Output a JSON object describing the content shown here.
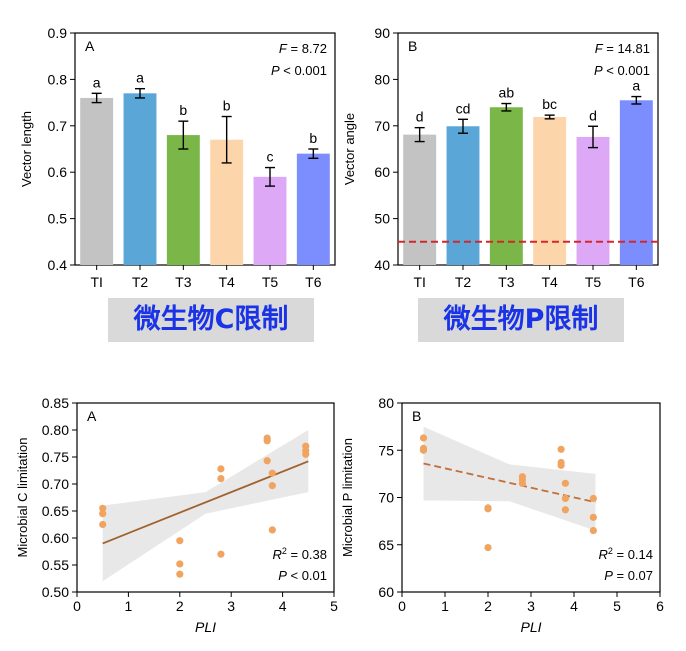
{
  "banners": {
    "left": "微生物C限制",
    "right": "微生物P限制"
  },
  "chart_data": [
    {
      "id": "bar-vector-length",
      "type": "bar",
      "panel_letter": "A",
      "ylabel": "Vector length",
      "xlabel": "",
      "ylim": [
        0.4,
        0.9
      ],
      "yticks": [
        "0.4",
        "0.5",
        "0.6",
        "0.7",
        "0.8",
        "0.9"
      ],
      "categories": [
        "TI",
        "T2",
        "T3",
        "T4",
        "T5",
        "T6"
      ],
      "values": [
        0.76,
        0.77,
        0.68,
        0.67,
        0.59,
        0.64
      ],
      "errors": [
        0.01,
        0.01,
        0.03,
        0.05,
        0.02,
        0.01
      ],
      "letters": [
        "a",
        "a",
        "b",
        "b",
        "c",
        "b"
      ],
      "colors": [
        "#c3c3c3",
        "#5aa7d7",
        "#7ab648",
        "#fdd5aa",
        "#dda8f5",
        "#7c8dfd"
      ],
      "stats": {
        "f_label": "F",
        "f_value": " = 8.72",
        "p_label": "P",
        "p_value": " < 0.001"
      }
    },
    {
      "id": "bar-vector-angle",
      "type": "bar",
      "panel_letter": "B",
      "ylabel": "Vector angle",
      "xlabel": "",
      "ylim": [
        40,
        90
      ],
      "yticks": [
        "40",
        "50",
        "60",
        "70",
        "80",
        "90"
      ],
      "categories": [
        "TI",
        "T2",
        "T3",
        "T4",
        "T5",
        "T6"
      ],
      "values": [
        68.1,
        69.9,
        74.0,
        71.9,
        67.6,
        75.5
      ],
      "errors": [
        1.5,
        1.5,
        0.8,
        0.4,
        2.3,
        0.8
      ],
      "letters": [
        "d",
        "cd",
        "ab",
        "bc",
        "d",
        "a"
      ],
      "colors": [
        "#c3c3c3",
        "#5aa7d7",
        "#7ab648",
        "#fdd5aa",
        "#dda8f5",
        "#7c8dfd"
      ],
      "reference_line": {
        "y": 45,
        "color": "#d62728",
        "style": "dashed"
      },
      "stats": {
        "f_label": "F",
        "f_value": " = 14.81",
        "p_label": "P",
        "p_value": " < 0.001"
      }
    },
    {
      "id": "scatter-c-limitation",
      "type": "scatter",
      "panel_letter": "A",
      "xlabel": "PLI",
      "ylabel": "Microbial C limitation",
      "xlim": [
        0,
        5
      ],
      "ylim": [
        0.5,
        0.85
      ],
      "xticks": [
        "0",
        "1",
        "2",
        "3",
        "4",
        "5"
      ],
      "yticks": [
        "0.50",
        "0.55",
        "0.60",
        "0.65",
        "0.70",
        "0.75",
        "0.80",
        "0.85"
      ],
      "points": [
        [
          0.5,
          0.625
        ],
        [
          0.5,
          0.645
        ],
        [
          0.5,
          0.655
        ],
        [
          2.0,
          0.533
        ],
        [
          2.0,
          0.552
        ],
        [
          2.0,
          0.595
        ],
        [
          2.8,
          0.57
        ],
        [
          2.8,
          0.71
        ],
        [
          2.8,
          0.728
        ],
        [
          3.7,
          0.743
        ],
        [
          3.7,
          0.78
        ],
        [
          3.7,
          0.785
        ],
        [
          3.8,
          0.615
        ],
        [
          3.8,
          0.697
        ],
        [
          3.8,
          0.72
        ],
        [
          4.45,
          0.755
        ],
        [
          4.45,
          0.762
        ],
        [
          4.45,
          0.77
        ]
      ],
      "fit": {
        "x": [
          0.5,
          4.5
        ],
        "y": [
          0.59,
          0.742
        ],
        "style": "solid",
        "color": "#a0622d"
      },
      "band": {
        "x": [
          0.5,
          2.5,
          4.5
        ],
        "upper": [
          0.66,
          0.685,
          0.8
        ],
        "lower": [
          0.52,
          0.645,
          0.685
        ]
      },
      "point_color": "#f0a460",
      "stats": {
        "r2_label": "R",
        "r2_sup": "2",
        "r2_value": " = 0.38",
        "p_label": "P",
        "p_value": " < 0.01"
      }
    },
    {
      "id": "scatter-p-limitation",
      "type": "scatter",
      "panel_letter": "B",
      "xlabel": "PLI",
      "ylabel": "Microbial P limitation",
      "xlim": [
        0,
        6
      ],
      "ylim": [
        60,
        80
      ],
      "xticks": [
        "0",
        "1",
        "2",
        "3",
        "4",
        "5",
        "6"
      ],
      "yticks": [
        "60",
        "65",
        "70",
        "75",
        "80"
      ],
      "points": [
        [
          0.5,
          75.0
        ],
        [
          0.5,
          75.2
        ],
        [
          0.5,
          76.3
        ],
        [
          2.0,
          64.7
        ],
        [
          2.0,
          68.8
        ],
        [
          2.0,
          68.9
        ],
        [
          2.8,
          71.5
        ],
        [
          2.8,
          71.9
        ],
        [
          2.8,
          72.2
        ],
        [
          3.7,
          73.4
        ],
        [
          3.7,
          73.7
        ],
        [
          3.7,
          75.1
        ],
        [
          3.8,
          68.7
        ],
        [
          3.8,
          69.9
        ],
        [
          3.8,
          71.5
        ],
        [
          4.45,
          66.5
        ],
        [
          4.45,
          67.9
        ],
        [
          4.45,
          69.9
        ]
      ],
      "fit": {
        "x": [
          0.5,
          4.5
        ],
        "y": [
          73.6,
          69.5
        ],
        "style": "dashed",
        "color": "#c0703a"
      },
      "band": {
        "x": [
          0.5,
          2.5,
          4.5
        ],
        "upper": [
          77.5,
          73.5,
          72.5
        ],
        "lower": [
          69.7,
          69.6,
          66.5
        ]
      },
      "point_color": "#f0a460",
      "stats": {
        "r2_label": "R",
        "r2_sup": "2",
        "r2_value": " = 0.14",
        "p_label": "P",
        "p_value": " = 0.07"
      }
    }
  ]
}
